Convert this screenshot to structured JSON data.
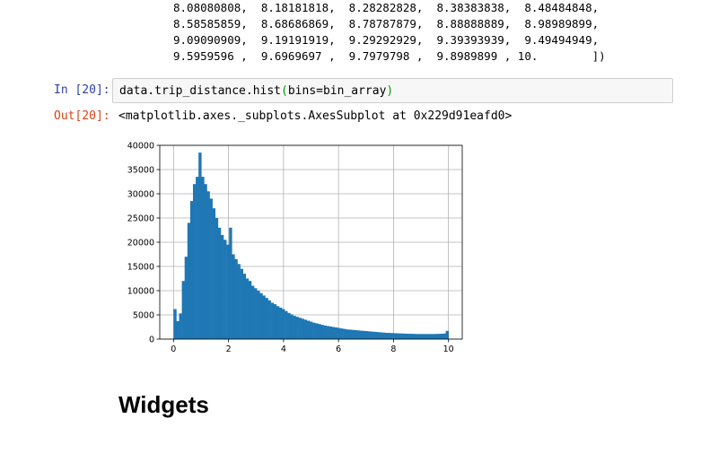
{
  "array_output": {
    "lines": [
      "8.08080808,  8.18181818,  8.28282828,  8.38383838,  8.48484848,",
      "8.58585859,  8.68686869,  8.78787879,  8.88888889,  8.98989899,",
      "9.09090909,  9.19191919,  9.29292929,  9.39393939,  9.49494949,",
      "9.5959596 ,  9.6969697 ,  9.7979798 ,  9.8989899 , 10.        ])"
    ]
  },
  "cell": {
    "in_prompt": "In [20]:",
    "code_before": "data.trip_distance.hist",
    "code_open": "(",
    "code_args": "bins=bin_array",
    "code_close": ")",
    "out_prompt": "Out[20]:",
    "out_text": "<matplotlib.axes._subplots.AxesSubplot at 0x229d91eafd0>"
  },
  "heading": "Widgets",
  "chart_data": {
    "type": "bar",
    "grid": true,
    "xlim": [
      -0.5,
      10.5
    ],
    "ylim": [
      0,
      40000
    ],
    "xticks": [
      0,
      2,
      4,
      6,
      8,
      10
    ],
    "yticks": [
      0,
      5000,
      10000,
      15000,
      20000,
      25000,
      30000,
      35000,
      40000
    ],
    "bar_color": "#1f77b4",
    "bin_width": 0.10101,
    "x": [
      0.0,
      0.101,
      0.202,
      0.303,
      0.404,
      0.505,
      0.606,
      0.707,
      0.808,
      0.909,
      1.01,
      1.111,
      1.212,
      1.313,
      1.414,
      1.515,
      1.616,
      1.717,
      1.818,
      1.919,
      2.02,
      2.121,
      2.222,
      2.323,
      2.424,
      2.525,
      2.626,
      2.727,
      2.828,
      2.929,
      3.03,
      3.131,
      3.232,
      3.333,
      3.434,
      3.535,
      3.636,
      3.737,
      3.838,
      3.939,
      4.04,
      4.141,
      4.242,
      4.343,
      4.444,
      4.545,
      4.646,
      4.747,
      4.848,
      4.949,
      5.051,
      5.152,
      5.253,
      5.354,
      5.455,
      5.556,
      5.657,
      5.758,
      5.859,
      5.96,
      6.061,
      6.162,
      6.263,
      6.364,
      6.465,
      6.566,
      6.667,
      6.768,
      6.869,
      6.97,
      7.071,
      7.172,
      7.273,
      7.374,
      7.475,
      7.576,
      7.677,
      7.778,
      7.879,
      7.98,
      8.081,
      8.182,
      8.283,
      8.384,
      8.485,
      8.586,
      8.687,
      8.788,
      8.889,
      8.99,
      9.091,
      9.192,
      9.293,
      9.394,
      9.495,
      9.596,
      9.697,
      9.798,
      9.899
    ],
    "values": [
      6200,
      3700,
      5300,
      12000,
      17000,
      24000,
      28500,
      32000,
      33500,
      38500,
      33500,
      32000,
      30500,
      29000,
      27000,
      25000,
      23000,
      21500,
      20500,
      19500,
      23000,
      17500,
      16500,
      15500,
      14500,
      13500,
      12500,
      12000,
      11000,
      10500,
      10000,
      9500,
      9000,
      8500,
      8000,
      7500,
      7200,
      6800,
      6500,
      6200,
      5800,
      5400,
      5100,
      4800,
      4600,
      4400,
      4200,
      4000,
      3800,
      3600,
      3400,
      3250,
      3100,
      2950,
      2800,
      2700,
      2600,
      2500,
      2400,
      2300,
      2200,
      2100,
      2000,
      1950,
      1900,
      1850,
      1800,
      1750,
      1700,
      1650,
      1600,
      1550,
      1500,
      1450,
      1400,
      1350,
      1300,
      1280,
      1250,
      1220,
      1200,
      1180,
      1150,
      1130,
      1100,
      1100,
      1080,
      1060,
      1050,
      1050,
      1050,
      1050,
      1050,
      1050,
      1060,
      1080,
      1100,
      1150,
      1700
    ]
  }
}
